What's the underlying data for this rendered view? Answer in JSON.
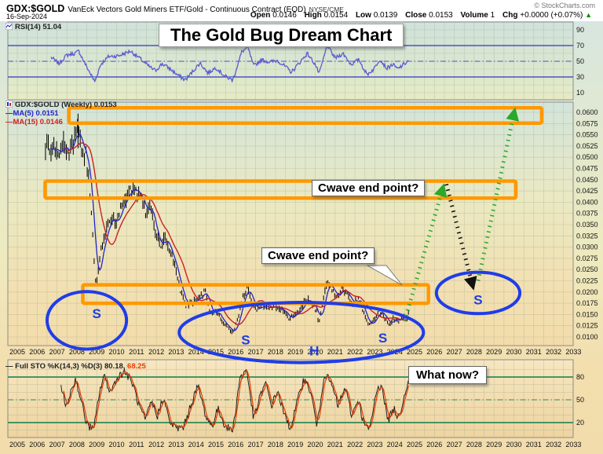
{
  "header": {
    "symbol": "GDX:$GOLD",
    "description": "VanEck Vectors Gold Miners ETF/Gold - Continuous Contract (EOD)",
    "exchange": "NYSE/CME",
    "date": "16-Sep-2024",
    "copyright": "© StockCharts.com",
    "quote": {
      "open_label": "Open",
      "open": "0.0146",
      "high_label": "High",
      "high": "0.0154",
      "low_label": "Low",
      "low": "0.0139",
      "close_label": "Close",
      "close": "0.0153",
      "volume_label": "Volume",
      "volume": "1",
      "chg_label": "Chg",
      "chg": "+0.0000 (+0.07%)",
      "direction": "▲"
    }
  },
  "panels": {
    "rsi": {
      "legend": "RSI(14) 51.04",
      "axis": [
        "90",
        "70",
        "50",
        "30",
        "10"
      ]
    },
    "price": {
      "legend": "GDX:$GOLD (Weekly) 0.0153",
      "ma5_legend": "MA(5) 0.0151",
      "ma15_legend": "MA(15) 0.0146",
      "axis": [
        "0.0600",
        "0.0575",
        "0.0550",
        "0.0525",
        "0.0500",
        "0.0475",
        "0.0450",
        "0.0425",
        "0.0400",
        "0.0375",
        "0.0350",
        "0.0325",
        "0.0300",
        "0.0275",
        "0.0250",
        "0.0225",
        "0.0200",
        "0.0175",
        "0.0150",
        "0.0125",
        "0.0100"
      ]
    },
    "sto": {
      "dash": "—",
      "legend_name": "Full STO %K(14,3) %D(3)",
      "k_value": "80.18,",
      "d_value": "68.25",
      "axis": [
        "80",
        "50",
        "20"
      ]
    }
  },
  "x_axis": {
    "years": [
      "2005",
      "2006",
      "2007",
      "2008",
      "2009",
      "2010",
      "2011",
      "2012",
      "2013",
      "2014",
      "2015",
      "2016",
      "2017",
      "2018",
      "2019",
      "2020",
      "2021",
      "2022",
      "2023",
      "2024",
      "2025",
      "2026",
      "2027",
      "2028",
      "2029",
      "2030",
      "2031",
      "2032",
      "2033"
    ]
  },
  "annotations": {
    "title": "The Gold Bug Dream Chart",
    "cwave1": "Cwave end point?",
    "cwave2": "Cwave end point?",
    "what_now": "What now?"
  },
  "chart_data": {
    "type": "line",
    "title": "The Gold Bug Dream Chart",
    "symbol": "GDX:$GOLD",
    "timeframe": "Weekly",
    "x_range": [
      2005,
      2033
    ],
    "price_axis_range": [
      0.01,
      0.06
    ],
    "rsi_axis_range": [
      0,
      100
    ],
    "sto_axis_range": [
      0,
      100
    ],
    "rsi_levels": [
      70,
      50,
      30
    ],
    "sto_levels": [
      80,
      50,
      20
    ],
    "price_path": [
      [
        2006.42,
        0.0505
      ],
      [
        2006.55,
        0.054
      ],
      [
        2006.7,
        0.05
      ],
      [
        2006.9,
        0.0528
      ],
      [
        2007.1,
        0.0512
      ],
      [
        2007.3,
        0.0535
      ],
      [
        2007.5,
        0.0502
      ],
      [
        2007.7,
        0.0522
      ],
      [
        2007.9,
        0.0548
      ],
      [
        2008.05,
        0.0565
      ],
      [
        2008.2,
        0.0522
      ],
      [
        2008.45,
        0.0505
      ],
      [
        2008.6,
        0.0452
      ],
      [
        2008.75,
        0.036
      ],
      [
        2008.88,
        0.0262
      ],
      [
        2008.98,
        0.0208
      ],
      [
        2009.15,
        0.0282
      ],
      [
        2009.4,
        0.0322
      ],
      [
        2009.7,
        0.0368
      ],
      [
        2009.95,
        0.0352
      ],
      [
        2010.2,
        0.0392
      ],
      [
        2010.5,
        0.0412
      ],
      [
        2010.75,
        0.0432
      ],
      [
        2011.0,
        0.0428
      ],
      [
        2011.25,
        0.0408
      ],
      [
        2011.5,
        0.0378
      ],
      [
        2011.7,
        0.0398
      ],
      [
        2011.95,
        0.0332
      ],
      [
        2012.2,
        0.03
      ],
      [
        2012.45,
        0.0318
      ],
      [
        2012.7,
        0.0282
      ],
      [
        2012.95,
        0.0262
      ],
      [
        2013.2,
        0.0205
      ],
      [
        2013.5,
        0.0168
      ],
      [
        2013.8,
        0.0178
      ],
      [
        2014.1,
        0.0182
      ],
      [
        2014.45,
        0.0202
      ],
      [
        2014.75,
        0.0152
      ],
      [
        2015.0,
        0.0158
      ],
      [
        2015.3,
        0.0134
      ],
      [
        2015.6,
        0.0122
      ],
      [
        2015.85,
        0.0108
      ],
      [
        2016.1,
        0.0138
      ],
      [
        2016.35,
        0.0188
      ],
      [
        2016.6,
        0.0212
      ],
      [
        2016.85,
        0.0172
      ],
      [
        2017.1,
        0.0158
      ],
      [
        2017.35,
        0.0174
      ],
      [
        2017.6,
        0.0163
      ],
      [
        2017.85,
        0.0171
      ],
      [
        2018.1,
        0.0166
      ],
      [
        2018.4,
        0.0156
      ],
      [
        2018.7,
        0.0139
      ],
      [
        2018.95,
        0.015
      ],
      [
        2019.2,
        0.0158
      ],
      [
        2019.5,
        0.0186
      ],
      [
        2019.8,
        0.0178
      ],
      [
        2020.1,
        0.0152
      ],
      [
        2020.2,
        0.0128
      ],
      [
        2020.4,
        0.0188
      ],
      [
        2020.6,
        0.0223
      ],
      [
        2020.85,
        0.0204
      ],
      [
        2021.1,
        0.0188
      ],
      [
        2021.35,
        0.0208
      ],
      [
        2021.6,
        0.0194
      ],
      [
        2021.9,
        0.0172
      ],
      [
        2022.15,
        0.0188
      ],
      [
        2022.4,
        0.016
      ],
      [
        2022.7,
        0.0124
      ],
      [
        2022.95,
        0.0136
      ],
      [
        2023.2,
        0.0158
      ],
      [
        2023.45,
        0.0148
      ],
      [
        2023.7,
        0.0127
      ],
      [
        2023.95,
        0.0141
      ],
      [
        2024.2,
        0.0134
      ],
      [
        2024.45,
        0.0147
      ],
      [
        2024.6,
        0.0141
      ],
      [
        2024.72,
        0.0153
      ]
    ],
    "rsi_path": [
      [
        2006.7,
        55
      ],
      [
        2007.1,
        47
      ],
      [
        2007.5,
        58
      ],
      [
        2007.9,
        60
      ],
      [
        2008.1,
        63
      ],
      [
        2008.35,
        50
      ],
      [
        2008.6,
        38
      ],
      [
        2008.9,
        24
      ],
      [
        2009.2,
        46
      ],
      [
        2009.6,
        56
      ],
      [
        2010.1,
        57
      ],
      [
        2010.7,
        63
      ],
      [
        2011.2,
        53
      ],
      [
        2011.6,
        44
      ],
      [
        2011.95,
        38
      ],
      [
        2012.3,
        47
      ],
      [
        2012.7,
        40
      ],
      [
        2013.1,
        32
      ],
      [
        2013.45,
        26
      ],
      [
        2013.8,
        36
      ],
      [
        2014.2,
        48
      ],
      [
        2014.6,
        35
      ],
      [
        2015.0,
        42
      ],
      [
        2015.45,
        31
      ],
      [
        2015.85,
        26
      ],
      [
        2016.3,
        62
      ],
      [
        2016.6,
        68
      ],
      [
        2016.9,
        44
      ],
      [
        2017.3,
        52
      ],
      [
        2017.7,
        49
      ],
      [
        2018.1,
        51
      ],
      [
        2018.5,
        43
      ],
      [
        2018.8,
        36
      ],
      [
        2019.2,
        48
      ],
      [
        2019.6,
        60
      ],
      [
        2020.0,
        46
      ],
      [
        2020.2,
        34
      ],
      [
        2020.6,
        70
      ],
      [
        2021.0,
        54
      ],
      [
        2021.4,
        60
      ],
      [
        2021.8,
        46
      ],
      [
        2022.2,
        52
      ],
      [
        2022.6,
        33
      ],
      [
        2022.95,
        40
      ],
      [
        2023.25,
        53
      ],
      [
        2023.6,
        41
      ],
      [
        2023.9,
        46
      ],
      [
        2024.15,
        40
      ],
      [
        2024.45,
        46
      ],
      [
        2024.72,
        51
      ]
    ],
    "sto_path": [
      [
        2007.2,
        72
      ],
      [
        2007.45,
        38
      ],
      [
        2007.7,
        62
      ],
      [
        2007.95,
        78
      ],
      [
        2008.2,
        50
      ],
      [
        2008.5,
        18
      ],
      [
        2008.85,
        10
      ],
      [
        2009.1,
        55
      ],
      [
        2009.35,
        82
      ],
      [
        2009.7,
        60
      ],
      [
        2010.0,
        78
      ],
      [
        2010.4,
        88
      ],
      [
        2010.8,
        72
      ],
      [
        2011.1,
        45
      ],
      [
        2011.45,
        22
      ],
      [
        2011.75,
        48
      ],
      [
        2012.05,
        28
      ],
      [
        2012.35,
        55
      ],
      [
        2012.65,
        22
      ],
      [
        2013.0,
        12
      ],
      [
        2013.4,
        15
      ],
      [
        2013.75,
        45
      ],
      [
        2014.1,
        68
      ],
      [
        2014.5,
        28
      ],
      [
        2014.8,
        15
      ],
      [
        2015.1,
        38
      ],
      [
        2015.5,
        14
      ],
      [
        2015.85,
        10
      ],
      [
        2016.2,
        78
      ],
      [
        2016.55,
        90
      ],
      [
        2016.9,
        24
      ],
      [
        2017.2,
        52
      ],
      [
        2017.5,
        72
      ],
      [
        2017.8,
        42
      ],
      [
        2018.1,
        62
      ],
      [
        2018.45,
        30
      ],
      [
        2018.75,
        12
      ],
      [
        2019.05,
        42
      ],
      [
        2019.4,
        78
      ],
      [
        2019.75,
        62
      ],
      [
        2020.1,
        15
      ],
      [
        2020.45,
        85
      ],
      [
        2020.8,
        72
      ],
      [
        2021.15,
        42
      ],
      [
        2021.5,
        66
      ],
      [
        2021.85,
        28
      ],
      [
        2022.15,
        52
      ],
      [
        2022.45,
        18
      ],
      [
        2022.75,
        10
      ],
      [
        2023.05,
        58
      ],
      [
        2023.35,
        72
      ],
      [
        2023.65,
        22
      ],
      [
        2023.95,
        38
      ],
      [
        2024.2,
        26
      ],
      [
        2024.5,
        58
      ],
      [
        2024.72,
        80
      ]
    ],
    "boxes": [
      {
        "name": "target-zone-top",
        "x1": 2007.6,
        "x2": 2031.4,
        "v1": 0.0576,
        "v2": 0.061
      },
      {
        "name": "cwave-zone-mid",
        "x1": 2006.4,
        "x2": 2030.1,
        "v1": 0.0409,
        "v2": 0.0447
      },
      {
        "name": "shoulder-zone-low",
        "x1": 2008.3,
        "x2": 2025.7,
        "v1": 0.0175,
        "v2": 0.0216
      }
    ],
    "ellipses": [
      {
        "name": "left-shoulder-ellipse",
        "cx": 2008.5,
        "cy": 0.0137,
        "rx": 2.0,
        "ry": 0.0064
      },
      {
        "name": "base-pattern-ellipse",
        "cx": 2019.3,
        "cy": 0.011,
        "rx": 6.15,
        "ry": 0.0067
      },
      {
        "name": "future-shoulder-ellipse",
        "cx": 2028.2,
        "cy": 0.0198,
        "rx": 2.1,
        "ry": 0.0046
      }
    ],
    "arrows": [
      {
        "name": "projection-up-1",
        "color": "green",
        "x1": 2024.5,
        "v1": 0.0135,
        "x2": 2026.4,
        "v2": 0.0428
      },
      {
        "name": "projection-down",
        "color": "black",
        "x1": 2026.6,
        "v1": 0.044,
        "x2": 2027.9,
        "v2": 0.0218
      },
      {
        "name": "projection-up-2",
        "color": "green",
        "x1": 2028.2,
        "v1": 0.0225,
        "x2": 2030.0,
        "v2": 0.0597
      }
    ],
    "letters": [
      {
        "text": "S",
        "x": 2009.0,
        "v": 0.015
      },
      {
        "text": "S",
        "x": 2016.5,
        "v": 0.0091
      },
      {
        "text": "H",
        "x": 2019.95,
        "v": 0.0067
      },
      {
        "text": "S",
        "x": 2023.4,
        "v": 0.0096
      },
      {
        "text": "S",
        "x": 2028.2,
        "v": 0.018
      }
    ],
    "colors": {
      "annotation_orange": "#ff9900",
      "annotation_blue": "#1f3de8",
      "annotation_green": "#2ca82c",
      "annotation_black": "#111111",
      "price_bars": "#000000",
      "ma5": "#2424cc",
      "ma15": "#cc2222",
      "rsi_line": "#5a5ad2",
      "rsi_level": "#4a52c8",
      "rsi_fill": "#7fd0c5",
      "sto_k": "#222222",
      "sto_d": "#e53c00",
      "sto_level": "#2e8b57",
      "grid": "#9aa58c"
    }
  }
}
